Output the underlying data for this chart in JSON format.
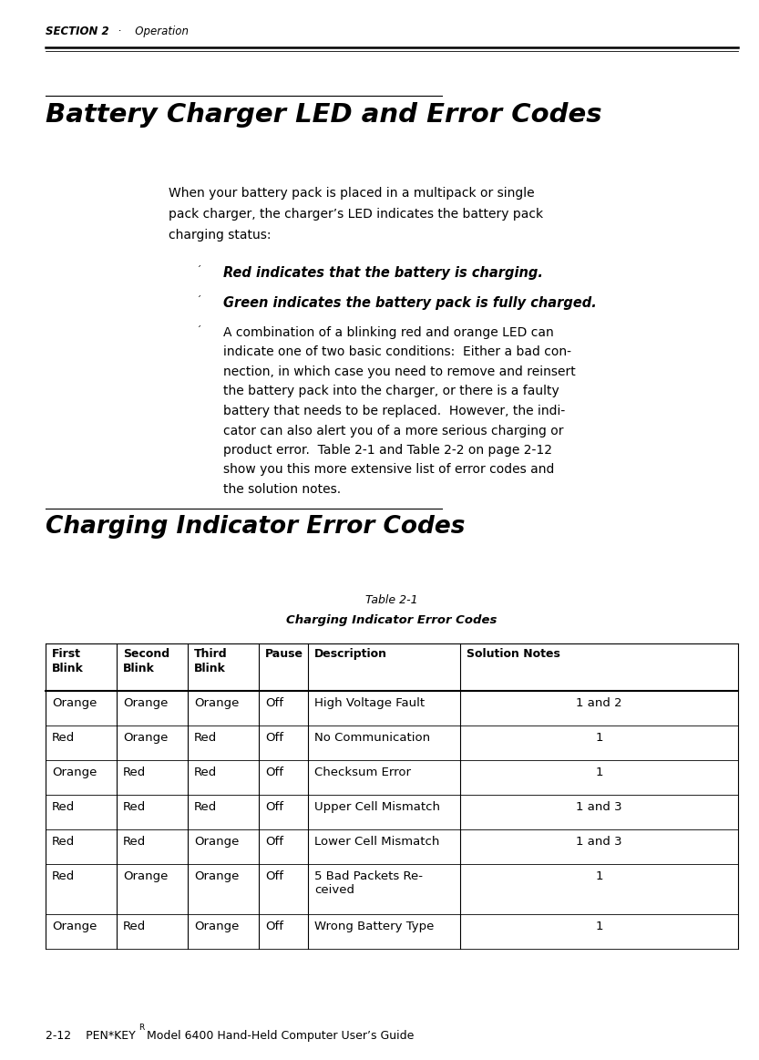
{
  "header_section_bold": "SECTION 2",
  "header_section_rest": "  ·    Operation",
  "title1": "Battery Charger LED and Error Codes",
  "body_text_lines": [
    "When your battery pack is placed in a multipack or single",
    "pack charger, the charger’s LED indicates the battery pack",
    "charging status:"
  ],
  "bullet1": "Red indicates that the battery is charging.",
  "bullet2": "Green indicates the battery pack is fully charged.",
  "bullet3_lines": [
    "A combination of a blinking red and orange LED can",
    "indicate one of two basic conditions:  Either a bad con-",
    "nection, in which case you need to remove and reinsert",
    "the battery pack into the charger, or there is a faulty",
    "battery that needs to be replaced.  However, the indi-",
    "cator can also alert you of a more serious charging or",
    "product error.  Table 2-1 and Table 2-2 on page 2-12",
    "show you this more extensive list of error codes and",
    "the solution notes."
  ],
  "title2": "Charging Indicator Error Codes",
  "table_title1": "Table 2-1",
  "table_title2": "Charging Indicator Error Codes",
  "col_headers": [
    "First\nBlink",
    "Second\nBlink",
    "Third\nBlink",
    "Pause",
    "Description",
    "Solution Notes"
  ],
  "table_rows": [
    [
      "Orange",
      "Orange",
      "Orange",
      "Off",
      "High Voltage Fault",
      "1 and 2"
    ],
    [
      "Red",
      "Orange",
      "Red",
      "Off",
      "No Communication",
      "1"
    ],
    [
      "Orange",
      "Red",
      "Red",
      "Off",
      "Checksum Error",
      "1"
    ],
    [
      "Red",
      "Red",
      "Red",
      "Off",
      "Upper Cell Mismatch",
      "1 and 3"
    ],
    [
      "Red",
      "Red",
      "Orange",
      "Off",
      "Lower Cell Mismatch",
      "1 and 3"
    ],
    [
      "Red",
      "Orange",
      "Orange",
      "Off",
      "5 Bad Packets Re-\nceived",
      "1"
    ],
    [
      "Orange",
      "Red",
      "Orange",
      "Off",
      "Wrong Battery Type",
      "1"
    ]
  ],
  "footer_text": "2-12    PEN*KEY",
  "footer_super": "R",
  "footer_rest": " Model 6400 Hand-Held Computer User’s Guide",
  "bg_color": "#ffffff",
  "text_color": "#000000"
}
